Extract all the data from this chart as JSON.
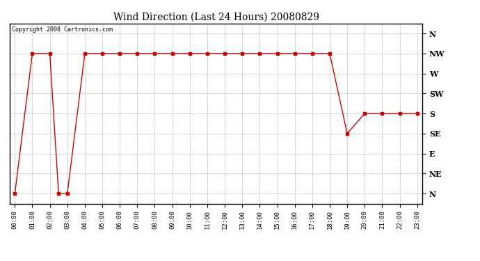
{
  "title": "Wind Direction (Last 24 Hours) 20080829",
  "copyright": "Copyright 2008 Cartronics.com",
  "background_color": "#ffffff",
  "line_color": "#cc0000",
  "grid_color": "#aaaaaa",
  "ytick_labels": [
    "N",
    "NE",
    "E",
    "SE",
    "S",
    "SW",
    "W",
    "NW",
    "N"
  ],
  "ytick_values": [
    0,
    1,
    2,
    3,
    4,
    5,
    6,
    7,
    8
  ],
  "xtick_labels": [
    "00:00",
    "01:00",
    "02:00",
    "03:00",
    "04:00",
    "05:00",
    "06:00",
    "07:00",
    "08:00",
    "09:00",
    "10:00",
    "11:00",
    "12:00",
    "13:00",
    "14:00",
    "15:00",
    "16:00",
    "17:00",
    "18:00",
    "19:00",
    "20:00",
    "21:00",
    "22:00",
    "23:00"
  ],
  "time_hours": [
    0,
    1,
    2,
    2.5,
    3,
    4,
    5,
    6,
    7,
    8,
    9,
    10,
    11,
    12,
    13,
    14,
    15,
    16,
    17,
    18,
    19,
    20,
    21,
    22,
    23
  ],
  "wind_values": [
    0,
    7,
    7,
    0,
    0,
    7,
    7,
    7,
    7,
    7,
    7,
    7,
    7,
    7,
    7,
    7,
    7,
    7,
    7,
    7,
    3,
    4,
    4,
    4,
    4
  ],
  "figwidth": 6.9,
  "figheight": 3.75,
  "dpi": 100
}
